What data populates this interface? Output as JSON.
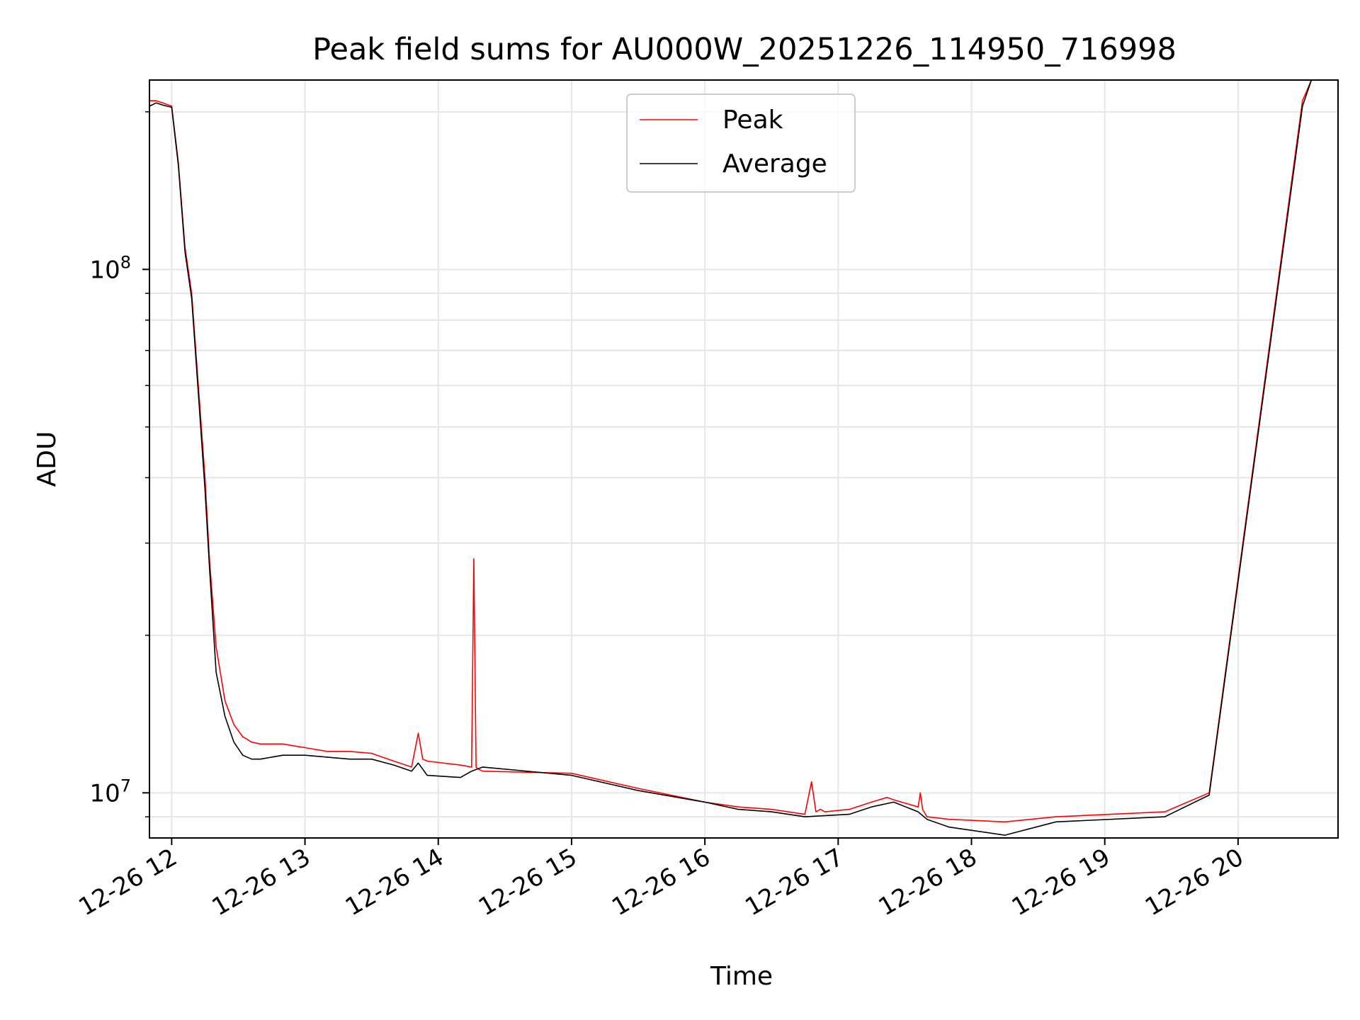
{
  "chart_data": {
    "type": "line",
    "title": "Peak field sums for AU000W_20251226_114950_716998",
    "xlabel": "Time",
    "ylabel": "ADU",
    "yscale": "log",
    "xlim": [
      "12-26 11:50",
      "12-26 20:45"
    ],
    "ylim": [
      8200000,
      230000000
    ],
    "grid": true,
    "legend_position": "upper center",
    "x_ticks": [
      "12-26 12",
      "12-26 13",
      "12-26 14",
      "12-26 15",
      "12-26 16",
      "12-26 17",
      "12-26 18",
      "12-26 19",
      "12-26 20"
    ],
    "y_tick_labels": [
      {
        "base": "10",
        "exp": "7"
      },
      {
        "base": "10",
        "exp": "8"
      }
    ],
    "series": [
      {
        "name": "Peak",
        "color": "#ff0000",
        "x": [
          "12-26 11:50",
          "12-26 11:53",
          "12-26 11:56",
          "12-26 12:00",
          "12-26 12:03",
          "12-26 12:06",
          "12-26 12:09",
          "12-26 12:12",
          "12-26 12:15",
          "12-26 12:17",
          "12-26 12:20",
          "12-26 12:24",
          "12-26 12:28",
          "12-26 12:32",
          "12-26 12:36",
          "12-26 12:40",
          "12-26 12:45",
          "12-26 12:50",
          "12-26 12:55",
          "12-26 13:00",
          "12-26 13:10",
          "12-26 13:20",
          "12-26 13:30",
          "12-26 13:40",
          "12-26 13:48",
          "12-26 13:51",
          "12-26 13:53",
          "12-26 13:55",
          "12-26 14:10",
          "12-26 14:15",
          "12-26 14:16",
          "12-26 14:17",
          "12-26 14:18",
          "12-26 14:20",
          "12-26 15:00",
          "12-26 15:30",
          "12-26 16:00",
          "12-26 16:15",
          "12-26 16:30",
          "12-26 16:45",
          "12-26 16:48",
          "12-26 16:50",
          "12-26 16:52",
          "12-26 16:54",
          "12-26 17:05",
          "12-26 17:15",
          "12-26 17:22",
          "12-26 17:25",
          "12-26 17:36",
          "12-26 17:37",
          "12-26 17:38",
          "12-26 17:40",
          "12-26 17:50",
          "12-26 18:15",
          "12-26 18:38",
          "12-26 19:27",
          "12-26 19:47",
          "12-26 20:29",
          "12-26 20:33",
          "12-26 20:45"
        ],
        "values": [
          210000000,
          210000000,
          208000000,
          205000000,
          160000000,
          110000000,
          90000000,
          60000000,
          40000000,
          28000000,
          19000000,
          15000000,
          13500000,
          12800000,
          12500000,
          12400000,
          12400000,
          12400000,
          12300000,
          12200000,
          12000000,
          12000000,
          11900000,
          11500000,
          11200000,
          13000000,
          11600000,
          11500000,
          11300000,
          11200000,
          28000000,
          11200000,
          11100000,
          11000000,
          10900000,
          10200000,
          9600000,
          9400000,
          9300000,
          9100000,
          10500000,
          9200000,
          9300000,
          9200000,
          9300000,
          9600000,
          9800000,
          9700000,
          9400000,
          10000000,
          9300000,
          9000000,
          8900000,
          8800000,
          9000000,
          9200000,
          10000000,
          210000000,
          230000000,
          230000000
        ]
      },
      {
        "name": "Average",
        "color": "#000000",
        "x": [
          "12-26 11:50",
          "12-26 11:53",
          "12-26 11:56",
          "12-26 12:00",
          "12-26 12:03",
          "12-26 12:06",
          "12-26 12:09",
          "12-26 12:12",
          "12-26 12:15",
          "12-26 12:17",
          "12-26 12:20",
          "12-26 12:24",
          "12-26 12:28",
          "12-26 12:32",
          "12-26 12:36",
          "12-26 12:40",
          "12-26 12:45",
          "12-26 12:50",
          "12-26 12:55",
          "12-26 13:00",
          "12-26 13:10",
          "12-26 13:20",
          "12-26 13:30",
          "12-26 13:40",
          "12-26 13:48",
          "12-26 13:51",
          "12-26 13:53",
          "12-26 13:55",
          "12-26 14:10",
          "12-26 14:15",
          "12-26 14:20",
          "12-26 15:00",
          "12-26 15:30",
          "12-26 16:00",
          "12-26 16:15",
          "12-26 16:30",
          "12-26 16:45",
          "12-26 17:05",
          "12-26 17:15",
          "12-26 17:25",
          "12-26 17:36",
          "12-26 17:40",
          "12-26 17:50",
          "12-26 18:15",
          "12-26 18:38",
          "12-26 19:27",
          "12-26 19:47",
          "12-26 20:29",
          "12-26 20:33",
          "12-26 20:45"
        ],
        "values": [
          205000000,
          208000000,
          206000000,
          204000000,
          158000000,
          108000000,
          88000000,
          58000000,
          38000000,
          27000000,
          17000000,
          14000000,
          12500000,
          11800000,
          11600000,
          11600000,
          11700000,
          11800000,
          11800000,
          11800000,
          11700000,
          11600000,
          11600000,
          11300000,
          11000000,
          11400000,
          11100000,
          10800000,
          10700000,
          11000000,
          11200000,
          10800000,
          10100000,
          9600000,
          9300000,
          9200000,
          9000000,
          9100000,
          9400000,
          9600000,
          9200000,
          8900000,
          8600000,
          8300000,
          8800000,
          9000000,
          9900000,
          205000000,
          230000000,
          230000000
        ]
      }
    ]
  }
}
